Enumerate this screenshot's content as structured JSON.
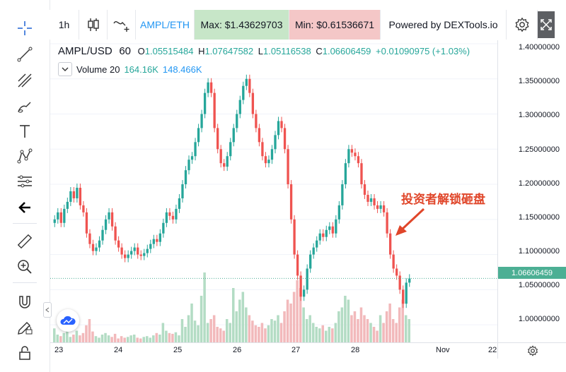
{
  "topbar": {
    "interval": "1h",
    "pair_link": "AMPL/ETH",
    "max_label": "Max: $1.43629703",
    "min_label": "Min: $0.61536671",
    "powered_by": "Powered by DEXTools.io",
    "colors": {
      "max_bg": "#c7e6c8",
      "min_bg": "#f4c7c7",
      "pair_color": "#2196f3"
    }
  },
  "toolbar_left": {
    "icons": [
      "crosshair-icon",
      "trend-line-icon",
      "fib-icon",
      "brush-icon",
      "text-icon",
      "pattern-icon",
      "forecast-icon",
      "back-arrow-icon",
      "ruler-icon",
      "zoom-in-icon",
      "magnet-icon",
      "lock-pencil-icon",
      "lock-icon"
    ]
  },
  "legend": {
    "symbol": "AMPL/USD",
    "interval": "60",
    "o_label": "O",
    "o_value": "1.05515484",
    "h_label": "H",
    "h_value": "1.07647582",
    "l_label": "L",
    "l_value": "1.05116538",
    "c_label": "C",
    "c_value": "1.06606459",
    "change": "+0.01090975 (+1.03%)",
    "volume_label": "Volume 20",
    "volume_a": "164.16K",
    "volume_b": "148.466K"
  },
  "annotation": "投资者解锁砸盘",
  "current_price": "1.06606459",
  "chart_data": {
    "type": "candlestick",
    "price_axis": [
      "1.40000000",
      "1.35000000",
      "1.30000000",
      "1.25000000",
      "1.20000000",
      "1.15000000",
      "1.10000000",
      "1.05000000",
      "1.00000000"
    ],
    "time_axis": [
      "23",
      "24",
      "25",
      "26",
      "27",
      "28",
      "Nov",
      "22"
    ],
    "ylim": [
      0.975,
      1.405
    ],
    "colors": {
      "up": "#26a69a",
      "down": "#ef5350",
      "up_vol": "#b3dcc4",
      "down_vol": "#f2b9bb"
    },
    "closes": [
      1.15,
      1.16,
      1.145,
      1.165,
      1.175,
      1.19,
      1.18,
      1.195,
      1.17,
      1.16,
      1.13,
      1.115,
      1.105,
      1.11,
      1.12,
      1.135,
      1.15,
      1.16,
      1.14,
      1.12,
      1.11,
      1.1,
      1.095,
      1.1,
      1.105,
      1.11,
      1.1,
      1.098,
      1.102,
      1.108,
      1.115,
      1.122,
      1.118,
      1.13,
      1.145,
      1.16,
      1.155,
      1.15,
      1.165,
      1.18,
      1.2,
      1.22,
      1.235,
      1.24,
      1.26,
      1.28,
      1.3,
      1.33,
      1.345,
      1.33,
      1.28,
      1.25,
      1.23,
      1.225,
      1.24,
      1.26,
      1.28,
      1.3,
      1.32,
      1.34,
      1.35,
      1.33,
      1.3,
      1.28,
      1.26,
      1.24,
      1.23,
      1.235,
      1.25,
      1.27,
      1.29,
      1.28,
      1.25,
      1.2,
      1.15,
      1.1,
      1.07,
      1.04,
      1.05,
      1.08,
      1.1,
      1.11,
      1.12,
      1.13,
      1.125,
      1.135,
      1.14,
      1.13,
      1.15,
      1.17,
      1.2,
      1.23,
      1.25,
      1.245,
      1.24,
      1.23,
      1.2,
      1.185,
      1.175,
      1.18,
      1.17,
      1.165,
      1.17,
      1.16,
      1.13,
      1.1,
      1.08,
      1.07,
      1.05,
      1.03,
      1.06,
      1.066
    ],
    "volumes": [
      0.18,
      0.1,
      0.08,
      0.12,
      0.2,
      0.07,
      0.1,
      0.15,
      0.09,
      0.12,
      0.22,
      0.3,
      0.14,
      0.08,
      0.06,
      0.1,
      0.12,
      0.09,
      0.07,
      0.11,
      0.05,
      0.08,
      0.06,
      0.07,
      0.09,
      0.1,
      0.06,
      0.05,
      0.07,
      0.08,
      0.06,
      0.09,
      0.12,
      0.1,
      0.25,
      0.15,
      0.12,
      0.11,
      0.13,
      0.09,
      0.3,
      0.2,
      0.35,
      0.5,
      0.28,
      0.22,
      0.6,
      0.9,
      0.25,
      0.3,
      0.35,
      0.2,
      0.18,
      0.15,
      0.3,
      0.25,
      0.7,
      0.4,
      0.55,
      0.65,
      0.45,
      0.35,
      0.28,
      0.22,
      0.2,
      0.25,
      0.18,
      0.22,
      0.3,
      0.28,
      0.35,
      0.25,
      0.4,
      0.55,
      0.5,
      0.65,
      0.8,
      0.7,
      0.45,
      0.3,
      0.35,
      0.25,
      0.2,
      0.18,
      0.22,
      0.15,
      0.2,
      0.18,
      0.25,
      0.4,
      0.45,
      0.6,
      0.55,
      0.35,
      0.4,
      0.3,
      0.45,
      0.35,
      0.3,
      0.25,
      0.2,
      0.15,
      0.35,
      0.25,
      0.4,
      0.5,
      0.3,
      0.25,
      0.45,
      0.55,
      0.35,
      0.3
    ]
  }
}
